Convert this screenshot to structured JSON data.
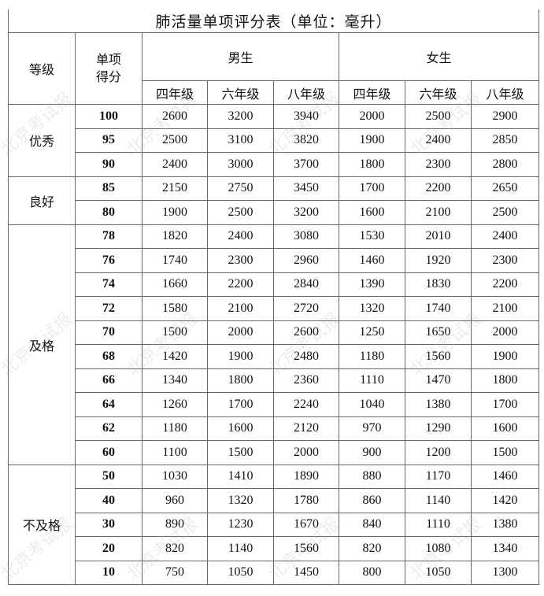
{
  "title": "肺活量单项评分表（单位：毫升）",
  "headers": {
    "grade": "等级",
    "score": "单项\n得分",
    "male": "男生",
    "female": "女生",
    "grades": [
      "四年级",
      "六年级",
      "八年级",
      "四年级",
      "六年级",
      "八年级"
    ]
  },
  "groups": [
    {
      "label": "优秀",
      "rows": [
        {
          "score": "100",
          "values": [
            "2600",
            "3200",
            "3940",
            "2000",
            "2500",
            "2900"
          ]
        },
        {
          "score": "95",
          "values": [
            "2500",
            "3100",
            "3820",
            "1900",
            "2400",
            "2850"
          ]
        },
        {
          "score": "90",
          "values": [
            "2400",
            "3000",
            "3700",
            "1800",
            "2300",
            "2800"
          ]
        }
      ]
    },
    {
      "label": "良好",
      "rows": [
        {
          "score": "85",
          "values": [
            "2150",
            "2750",
            "3450",
            "1700",
            "2200",
            "2650"
          ]
        },
        {
          "score": "80",
          "values": [
            "1900",
            "2500",
            "3200",
            "1600",
            "2100",
            "2500"
          ]
        }
      ]
    },
    {
      "label": "及格",
      "rows": [
        {
          "score": "78",
          "values": [
            "1820",
            "2400",
            "3080",
            "1530",
            "2010",
            "2400"
          ]
        },
        {
          "score": "76",
          "values": [
            "1740",
            "2300",
            "2960",
            "1460",
            "1920",
            "2300"
          ]
        },
        {
          "score": "74",
          "values": [
            "1660",
            "2200",
            "2840",
            "1390",
            "1830",
            "2200"
          ]
        },
        {
          "score": "72",
          "values": [
            "1580",
            "2100",
            "2720",
            "1320",
            "1740",
            "2100"
          ]
        },
        {
          "score": "70",
          "values": [
            "1500",
            "2000",
            "2600",
            "1250",
            "1650",
            "2000"
          ]
        },
        {
          "score": "68",
          "values": [
            "1420",
            "1900",
            "2480",
            "1180",
            "1560",
            "1900"
          ]
        },
        {
          "score": "66",
          "values": [
            "1340",
            "1800",
            "2360",
            "1110",
            "1470",
            "1800"
          ]
        },
        {
          "score": "64",
          "values": [
            "1260",
            "1700",
            "2240",
            "1040",
            "1380",
            "1700"
          ]
        },
        {
          "score": "62",
          "values": [
            "1180",
            "1600",
            "2120",
            "970",
            "1290",
            "1600"
          ]
        },
        {
          "score": "60",
          "values": [
            "1100",
            "1500",
            "2000",
            "900",
            "1200",
            "1500"
          ]
        }
      ]
    },
    {
      "label": "不及格",
      "rows": [
        {
          "score": "50",
          "values": [
            "1030",
            "1410",
            "1890",
            "880",
            "1170",
            "1460"
          ]
        },
        {
          "score": "40",
          "values": [
            "960",
            "1320",
            "1780",
            "860",
            "1140",
            "1420"
          ]
        },
        {
          "score": "30",
          "values": [
            "890",
            "1230",
            "1670",
            "840",
            "1110",
            "1380"
          ]
        },
        {
          "score": "20",
          "values": [
            "820",
            "1140",
            "1560",
            "820",
            "1080",
            "1340"
          ]
        },
        {
          "score": "10",
          "values": [
            "750",
            "1050",
            "1450",
            "800",
            "1050",
            "1300"
          ]
        }
      ]
    }
  ],
  "watermark": "北京考试报"
}
